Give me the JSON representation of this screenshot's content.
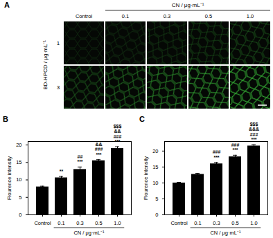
{
  "chart_data": [
    {
      "type": "bar",
      "title": "B",
      "categories": [
        "Control",
        "0.1",
        "0.3",
        "0.5",
        "1.0"
      ],
      "values": [
        8.0,
        10.6,
        13.0,
        15.5,
        19.0
      ],
      "errors": [
        0.2,
        0.4,
        0.7,
        0.3,
        0.5
      ],
      "annotations": [
        [],
        [
          "**"
        ],
        [
          "##",
          "***"
        ],
        [
          "&&",
          "###",
          "***"
        ],
        [
          "$$$",
          "&&",
          "###",
          "***"
        ]
      ],
      "x_label": "CN / μg·mL⁻¹",
      "y_label": "Flourence intensity",
      "color": "#000000",
      "ylim": [
        0,
        21
      ],
      "yticks": [
        0,
        5,
        10,
        15,
        20
      ]
    },
    {
      "type": "bar",
      "title": "C",
      "categories": [
        "Control",
        "0.1",
        "0.3",
        "0.5",
        "1.0"
      ],
      "values": [
        10.0,
        12.7,
        16.0,
        18.2,
        21.6
      ],
      "errors": [
        0.2,
        0.3,
        0.4,
        0.5,
        0.4
      ],
      "annotations": [
        [],
        [],
        [
          "###",
          "***"
        ],
        [
          "###",
          "***"
        ],
        [
          "$$$",
          "&&&",
          "###",
          "***"
        ]
      ],
      "x_label": "CN / μg·mL⁻¹",
      "y_label": "Flourence intensity",
      "color": "#000000",
      "ylim": [
        0,
        23
      ],
      "yticks": [
        0,
        5,
        10,
        15,
        20
      ]
    }
  ],
  "panel_a": {
    "label": "A",
    "column_title": "CN / μg·mL⁻¹",
    "columns": [
      "Control",
      "0.1",
      "0.3",
      "0.5",
      "1.0"
    ],
    "row_title": "BD-HPCD / μg·mL⁻¹",
    "rows": [
      "1",
      "3"
    ]
  }
}
